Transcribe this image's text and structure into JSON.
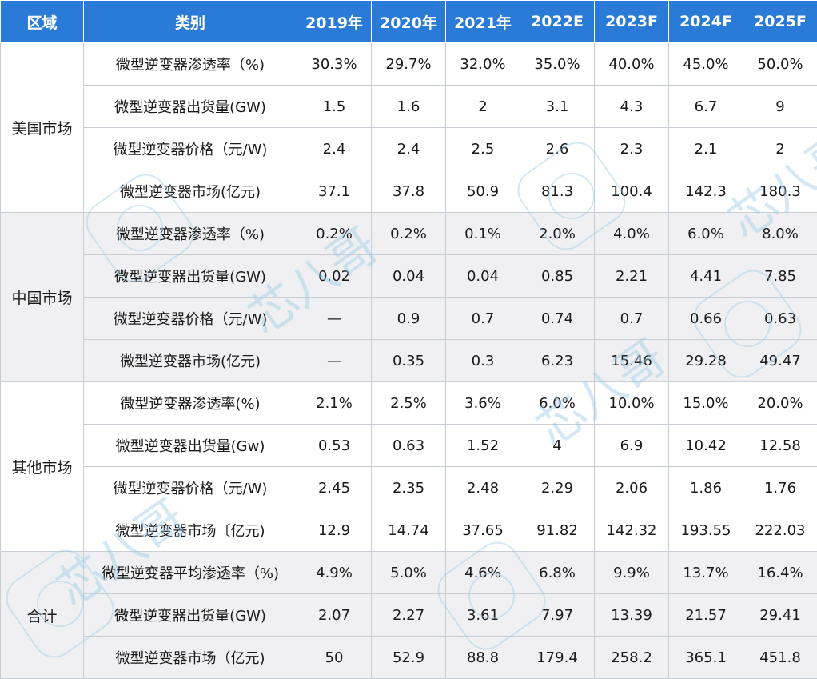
{
  "headers": [
    "区域",
    "类别",
    "2019年",
    "2020年",
    "2021年",
    "2022E",
    "2023F",
    "2024F",
    "2025F"
  ],
  "groups": [
    {
      "region": "美国市场",
      "rows": [
        {
          "category": "微型逆变器渗透率（%)",
          "values": [
            "30.3%",
            "29.7%",
            "32.0%",
            "35.0%",
            "40.0%",
            "45.0%",
            "50.0%"
          ]
        },
        {
          "category": "微型逆变器出货量(GW)",
          "values": [
            "1.5",
            "1.6",
            "2",
            "3.1",
            "4.3",
            "6.7",
            "9"
          ]
        },
        {
          "category": "微型逆变器价格（元/W)",
          "values": [
            "2.4",
            "2.4",
            "2.5",
            "2.6",
            "2.3",
            "2.1",
            "2"
          ]
        },
        {
          "category": "微型逆变器市场(亿元)",
          "values": [
            "37.1",
            "37.8",
            "50.9",
            "81.3",
            "100.4",
            "142.3",
            "180.3"
          ]
        }
      ]
    },
    {
      "region": "中国市场",
      "rows": [
        {
          "category": "微型逆变器渗透率（%)",
          "values": [
            "0.2%",
            "0.2%",
            "0.1%",
            "2.0%",
            "4.0%",
            "6.0%",
            "8.0%"
          ]
        },
        {
          "category": "微型逆变器出货量(GW)",
          "values": [
            "0.02",
            "0.04",
            "0.04",
            "0.85",
            "2.21",
            "4.41",
            "7.85"
          ]
        },
        {
          "category": "微型逆变器价格（元/W)",
          "values": [
            "—",
            "0.9",
            "0.7",
            "0.74",
            "0.7",
            "0.66",
            "0.63"
          ]
        },
        {
          "category": "微型逆变器市场(亿元)",
          "values": [
            "—",
            "0.35",
            "0.3",
            "6.23",
            "15.46",
            "29.28",
            "49.47"
          ]
        }
      ]
    },
    {
      "region": "其他市场",
      "rows": [
        {
          "category": "微型逆变器渗透率(%)",
          "values": [
            "2.1%",
            "2.5%",
            "3.6%",
            "6.0%",
            "10.0%",
            "15.0%",
            "20.0%"
          ]
        },
        {
          "category": "微型逆变器出货量(Gw)",
          "values": [
            "0.53",
            "0.63",
            "1.52",
            "4",
            "6.9",
            "10.42",
            "12.58"
          ]
        },
        {
          "category": "微型逆变器价格（元/W)",
          "values": [
            "2.45",
            "2.35",
            "2.48",
            "2.29",
            "2.06",
            "1.86",
            "1.76"
          ]
        },
        {
          "category": "微型逆变器市场〔亿元)",
          "values": [
            "12.9",
            "14.74",
            "37.65",
            "91.82",
            "142.32",
            "193.55",
            "222.03"
          ]
        }
      ]
    },
    {
      "region": "合计",
      "rows": [
        {
          "category": "微型逆变器平均渗透率（%)",
          "values": [
            "4.9%",
            "5.0%",
            "4.6%",
            "6.8%",
            "9.9%",
            "13.7%",
            "16.4%"
          ]
        },
        {
          "category": "微型逆变器出货量(GW)",
          "values": [
            "2.07",
            "2.27",
            "3.61",
            "7.97",
            "13.39",
            "21.57",
            "29.41"
          ]
        },
        {
          "category": "微型逆变器市场（亿元)",
          "values": [
            "50",
            "52.9",
            "88.8",
            "179.4",
            "258.2",
            "365.1",
            "451.8"
          ]
        }
      ]
    }
  ],
  "watermark_text": "芯八哥",
  "colors": {
    "header_bg": "#2a7bd8",
    "header_text": "#ffffff",
    "alt_row": "#f0f0f2",
    "border": "#c9cdd4",
    "watermark": "#9ecbe6"
  }
}
